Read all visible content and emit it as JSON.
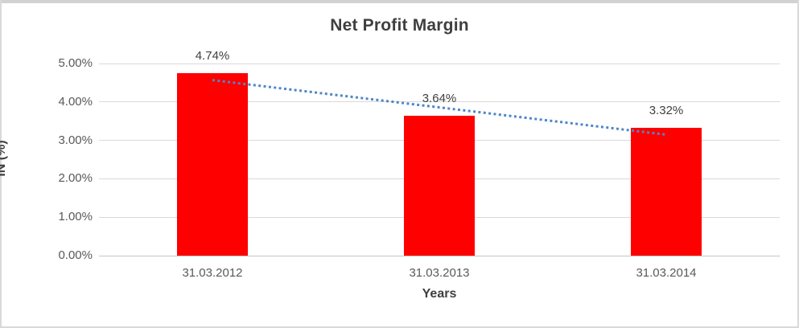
{
  "chart_data": {
    "type": "bar",
    "title": "Net Profit Margin",
    "xlabel": "Years",
    "ylabel": "IN (%)",
    "categories": [
      "31.03.2012",
      "31.03.2013",
      "31.03.2014"
    ],
    "values": [
      4.74,
      3.64,
      3.32
    ],
    "data_labels": [
      "4.74%",
      "3.64%",
      "3.32%"
    ],
    "ylim": [
      0,
      5
    ],
    "ytick_step": 1,
    "ytick_labels": [
      "0.00%",
      "1.00%",
      "2.00%",
      "3.00%",
      "4.00%",
      "5.00%"
    ],
    "grid": true,
    "legend": "none",
    "bar_color": "#ff0000",
    "trendline": {
      "type": "linear",
      "style": "dotted",
      "color": "#4e86c8"
    }
  }
}
